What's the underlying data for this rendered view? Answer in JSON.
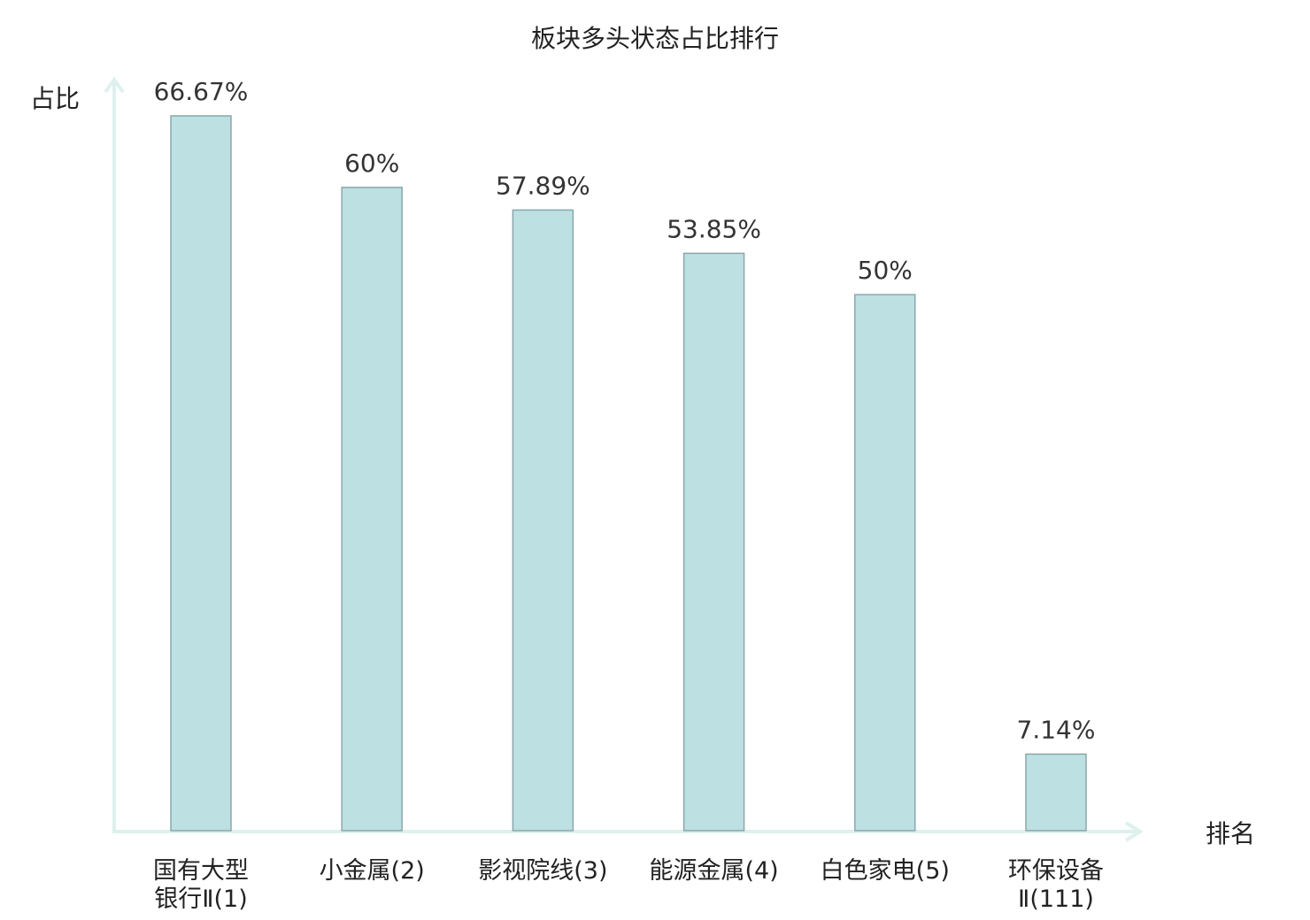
{
  "chart_data": {
    "type": "bar",
    "title": "板块多头状态占比排行",
    "ylabel": "占比",
    "xlabel": "排名",
    "categories": [
      [
        "国有大型",
        "银行Ⅱ(1)"
      ],
      [
        "小金属(2)"
      ],
      [
        "影视院线(3)"
      ],
      [
        "能源金属(4)"
      ],
      [
        "白色家电(5)"
      ],
      [
        "环保设备",
        "Ⅱ(111)"
      ]
    ],
    "values": [
      66.67,
      60,
      57.89,
      53.85,
      50,
      7.14
    ],
    "value_labels": [
      "66.67%",
      "60%",
      "57.89%",
      "53.85%",
      "50%",
      "7.14%"
    ],
    "highlight_index": 5,
    "ylim": [
      0,
      66.67
    ],
    "grid": false,
    "colors": {
      "bar_fill": "#bde0e3",
      "bar_stroke": "#8aa8ab",
      "axis": "#ddf1ee",
      "highlight_text": "#e8141a",
      "text": "#222222"
    }
  }
}
